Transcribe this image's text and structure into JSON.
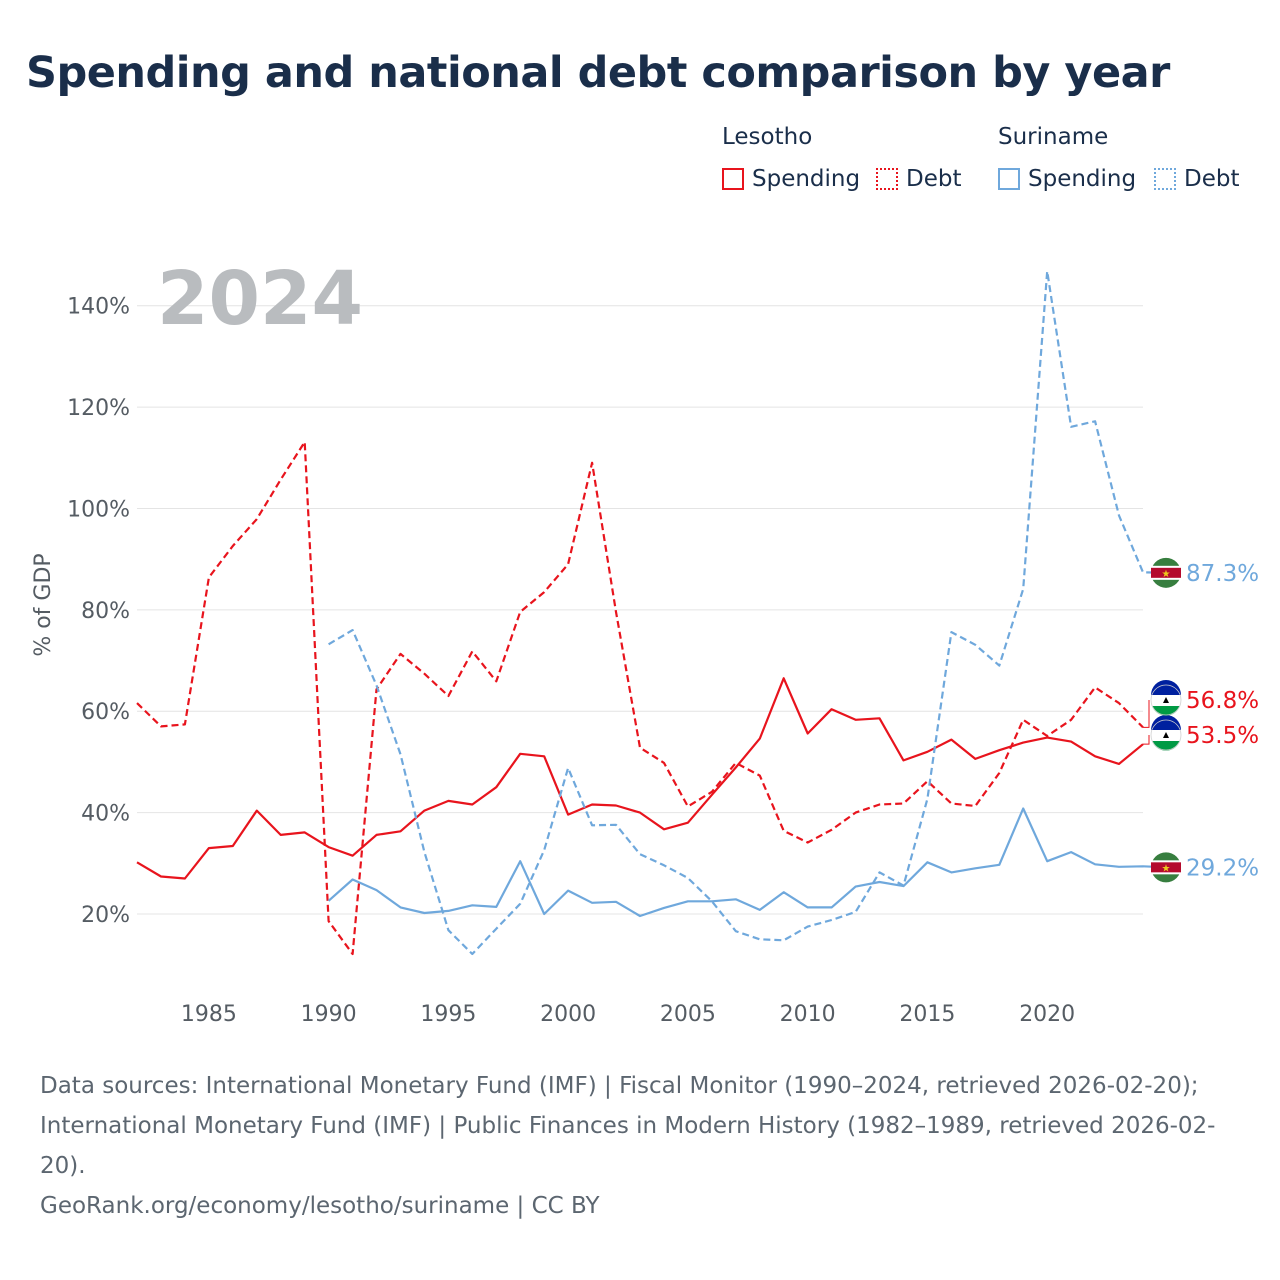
{
  "title": "Spending and national debt comparison by year",
  "legend": {
    "groups": [
      {
        "country": "Lesotho",
        "spending": "Spending",
        "debt": "Debt",
        "color": "#e8141d"
      },
      {
        "country": "Suriname",
        "spending": "Spending",
        "debt": "Debt",
        "color": "#6fa8dc"
      }
    ]
  },
  "sources": {
    "line1": "Data sources: International Monetary Fund (IMF) | Fiscal Monitor (1990–2024, retrieved 2026-02-20);",
    "line2": "International Monetary Fund (IMF) | Public Finances in Modern History (1982–1989, retrieved 2026-02-",
    "line3": "20).",
    "line4": "GeoRank.org/economy/lesotho/suriname | CC BY"
  },
  "colors": {
    "lesotho": "#e8141d",
    "suriname": "#6fa8dc",
    "grid": "#e4e4e4",
    "tick": "#555c63",
    "year_watermark": "#b9bcbf"
  },
  "chart_data": {
    "type": "line",
    "title": "Spending and national debt comparison by year",
    "xlabel": "",
    "ylabel": "% of GDP",
    "year_label": "2024",
    "xlim": [
      1982,
      2024
    ],
    "ylim": [
      5,
      150
    ],
    "x_ticks": [
      1985,
      1990,
      1995,
      2000,
      2005,
      2010,
      2015,
      2020
    ],
    "y_ticks": [
      20,
      40,
      60,
      80,
      100,
      120,
      140
    ],
    "y_tick_labels": [
      "20%",
      "40%",
      "60%",
      "80%",
      "100%",
      "120%",
      "140%"
    ],
    "grid": true,
    "legend_position": "top-right",
    "series": [
      {
        "name": "Lesotho Spending",
        "country": "Lesotho",
        "metric": "Spending",
        "style": "solid",
        "color": "#e8141d",
        "start": 1982,
        "values": [
          30.2,
          27.4,
          27.0,
          33.0,
          33.4,
          40.4,
          35.6,
          36.1,
          33.2,
          31.5,
          35.6,
          36.3,
          40.4,
          42.3,
          41.6,
          45.0,
          51.6,
          51.1,
          39.6,
          41.6,
          41.4,
          40.0,
          36.7,
          38.0,
          43.5,
          48.9,
          54.6,
          66.5,
          55.6,
          60.4,
          58.3,
          58.6,
          50.3,
          52.0,
          54.4,
          50.6,
          52.3,
          53.8,
          54.8,
          54.0,
          51.1,
          49.6,
          53.5
        ],
        "end_label": "53.5%"
      },
      {
        "name": "Lesotho Debt",
        "country": "Lesotho",
        "metric": "Debt",
        "style": "dashed",
        "color": "#e8141d",
        "start": 1982,
        "values": [
          61.6,
          57.0,
          57.4,
          86.4,
          92.6,
          97.9,
          105.7,
          113.1,
          18.6,
          12.1,
          64.3,
          71.3,
          67.4,
          63.0,
          71.8,
          65.9,
          79.6,
          83.5,
          89.0,
          109.0,
          79.6,
          52.8,
          49.8,
          41.2,
          44.1,
          49.8,
          47.3,
          36.4,
          34.1,
          36.6,
          40.0,
          41.6,
          41.8,
          46.2,
          41.8,
          41.3,
          47.8,
          58.3,
          55.1,
          58.3,
          64.7,
          61.6,
          56.8
        ],
        "end_label": "56.8%"
      },
      {
        "name": "Suriname Spending",
        "country": "Suriname",
        "metric": "Spending",
        "style": "solid",
        "color": "#6fa8dc",
        "start": 1990,
        "values": [
          22.6,
          26.8,
          24.7,
          21.3,
          20.2,
          20.6,
          21.7,
          21.4,
          30.4,
          20.0,
          24.6,
          22.2,
          22.4,
          19.6,
          21.2,
          22.5,
          22.5,
          22.9,
          20.8,
          24.3,
          21.3,
          21.3,
          25.4,
          26.3,
          25.5,
          30.2,
          28.2,
          29.0,
          29.7,
          40.8,
          30.4,
          32.2,
          29.8,
          29.3,
          29.4,
          29.2
        ],
        "end_label": "29.2%"
      },
      {
        "name": "Suriname Debt",
        "country": "Suriname",
        "metric": "Debt",
        "style": "dashed",
        "color": "#6fa8dc",
        "start": 1990,
        "values": [
          73.2,
          76.0,
          65.1,
          51.5,
          32.2,
          16.8,
          12.1,
          17.1,
          22.0,
          32.6,
          48.8,
          37.5,
          37.6,
          31.8,
          29.6,
          27.1,
          22.5,
          16.6,
          15.0,
          14.8,
          17.5,
          18.8,
          20.4,
          28.2,
          25.6,
          42.7,
          75.6,
          73.1,
          69.0,
          84.1,
          146.8,
          116.1,
          117.2,
          98.6,
          87.4,
          87.3
        ],
        "end_label": "87.3%"
      }
    ]
  }
}
